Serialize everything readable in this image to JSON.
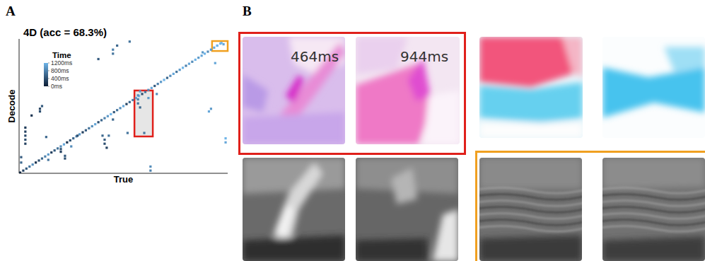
{
  "chart_data": {
    "type": "scatter",
    "panel_label": "A",
    "title": "4D (acc = 68.3%)",
    "x_label": "True",
    "y_label": "Decode",
    "xlim": [
      0,
      100
    ],
    "ylim": [
      0,
      100
    ],
    "tick_labels": false,
    "grid": false,
    "marker": "square",
    "legend_title": "Time",
    "time_range": [
      0,
      1200
    ],
    "time_ticks": [
      {
        "value": 1200,
        "label": "1200ms"
      },
      {
        "value": 800,
        "label": "800ms"
      },
      {
        "value": 400,
        "label": "400ms"
      },
      {
        "value": 0,
        "label": "0ms"
      }
    ],
    "x": [
      0.5,
      2,
      3.5,
      5,
      6.5,
      8,
      9.5,
      11,
      12.5,
      14,
      15.5,
      17,
      18.5,
      20,
      21.5,
      23,
      24.5,
      26,
      27.5,
      29,
      30.5,
      32,
      33.5,
      35,
      36.5,
      38,
      39.5,
      41,
      42.5,
      44,
      45.5,
      47,
      48.5,
      50,
      51.5,
      53,
      54.5,
      56,
      57.5,
      59,
      60.5,
      62,
      63.5,
      65,
      66.5,
      68,
      69.5,
      71,
      72.5,
      74,
      75.5,
      77,
      78.5,
      80,
      81.5,
      83,
      84.5,
      86,
      87.5,
      89,
      90.5,
      92,
      93.5,
      95,
      96.5,
      3,
      3,
      3,
      3,
      3,
      1,
      1,
      10,
      10,
      11,
      6,
      13,
      14,
      20,
      20,
      22,
      22,
      25,
      40,
      41,
      41,
      42,
      43,
      45,
      45,
      47,
      38,
      57,
      57,
      57,
      58,
      58,
      63,
      63,
      60,
      62,
      66,
      88,
      91,
      92,
      94,
      99,
      99,
      95,
      97,
      98,
      53,
      52,
      28,
      45
    ],
    "values": [
      0.5,
      2,
      3.5,
      5,
      6.5,
      8,
      9.5,
      11,
      12.5,
      14,
      15.5,
      17,
      18.5,
      20,
      21.5,
      23,
      24.5,
      26,
      27.5,
      29,
      30.5,
      32,
      33.5,
      35,
      36.5,
      38,
      39.5,
      41,
      42.5,
      44,
      45.5,
      47,
      48.5,
      50,
      51.5,
      53,
      54.5,
      56,
      57.5,
      59,
      60.5,
      62,
      63.5,
      65,
      66.5,
      68,
      69.5,
      71,
      72.5,
      74,
      75.5,
      77,
      78.5,
      80,
      81.5,
      83,
      84.5,
      86,
      87.5,
      89,
      90.5,
      92,
      93.5,
      95,
      96.5,
      22,
      25,
      28,
      31,
      34,
      8,
      12,
      46,
      48,
      50,
      43,
      27,
      10,
      18,
      16,
      13,
      11,
      20,
      28,
      25,
      22,
      19,
      28,
      92,
      89,
      95,
      85,
      52,
      55,
      58,
      61,
      49,
      5,
      2,
      30,
      56,
      59,
      90,
      46,
      48,
      82,
      26,
      23,
      95,
      97,
      96,
      98,
      30,
      28,
      40
    ],
    "time": [
      100,
      300,
      500,
      700,
      900,
      200,
      400,
      600,
      800,
      1000,
      300,
      500,
      700,
      900,
      1100,
      200,
      400,
      600,
      800,
      1000,
      300,
      500,
      700,
      900,
      1100,
      400,
      600,
      800,
      1000,
      1200,
      500,
      700,
      900,
      1100,
      300,
      600,
      800,
      1000,
      1200,
      400,
      700,
      900,
      1100,
      500,
      800,
      1000,
      1200,
      600,
      900,
      1100,
      700,
      1000,
      1200,
      800,
      1100,
      900,
      1200,
      1000,
      1100,
      1200,
      900,
      1000,
      1100,
      1200,
      1200,
      300,
      400,
      350,
      300,
      250,
      600,
      500,
      400,
      300,
      500,
      200,
      600,
      700,
      400,
      300,
      500,
      400,
      900,
      600,
      500,
      400,
      300,
      700,
      800,
      700,
      600,
      500,
      700,
      800,
      900,
      1000,
      600,
      900,
      800,
      700,
      1000,
      900,
      1000,
      1100,
      1000,
      1100,
      1200,
      1100,
      1200,
      1200,
      1100,
      700,
      700,
      400,
      600
    ],
    "highlights": [
      {
        "x": [
          55.3,
          64.1
        ],
        "y": [
          27.4,
          61.6
        ],
        "color": "#e0201b"
      },
      {
        "x": [
          92.5,
          100
        ],
        "y": [
          91,
          98.4
        ],
        "color": "#f0a020"
      }
    ]
  },
  "panel_b": {
    "label": "B",
    "frame_times": [
      "464ms",
      "944ms"
    ]
  }
}
